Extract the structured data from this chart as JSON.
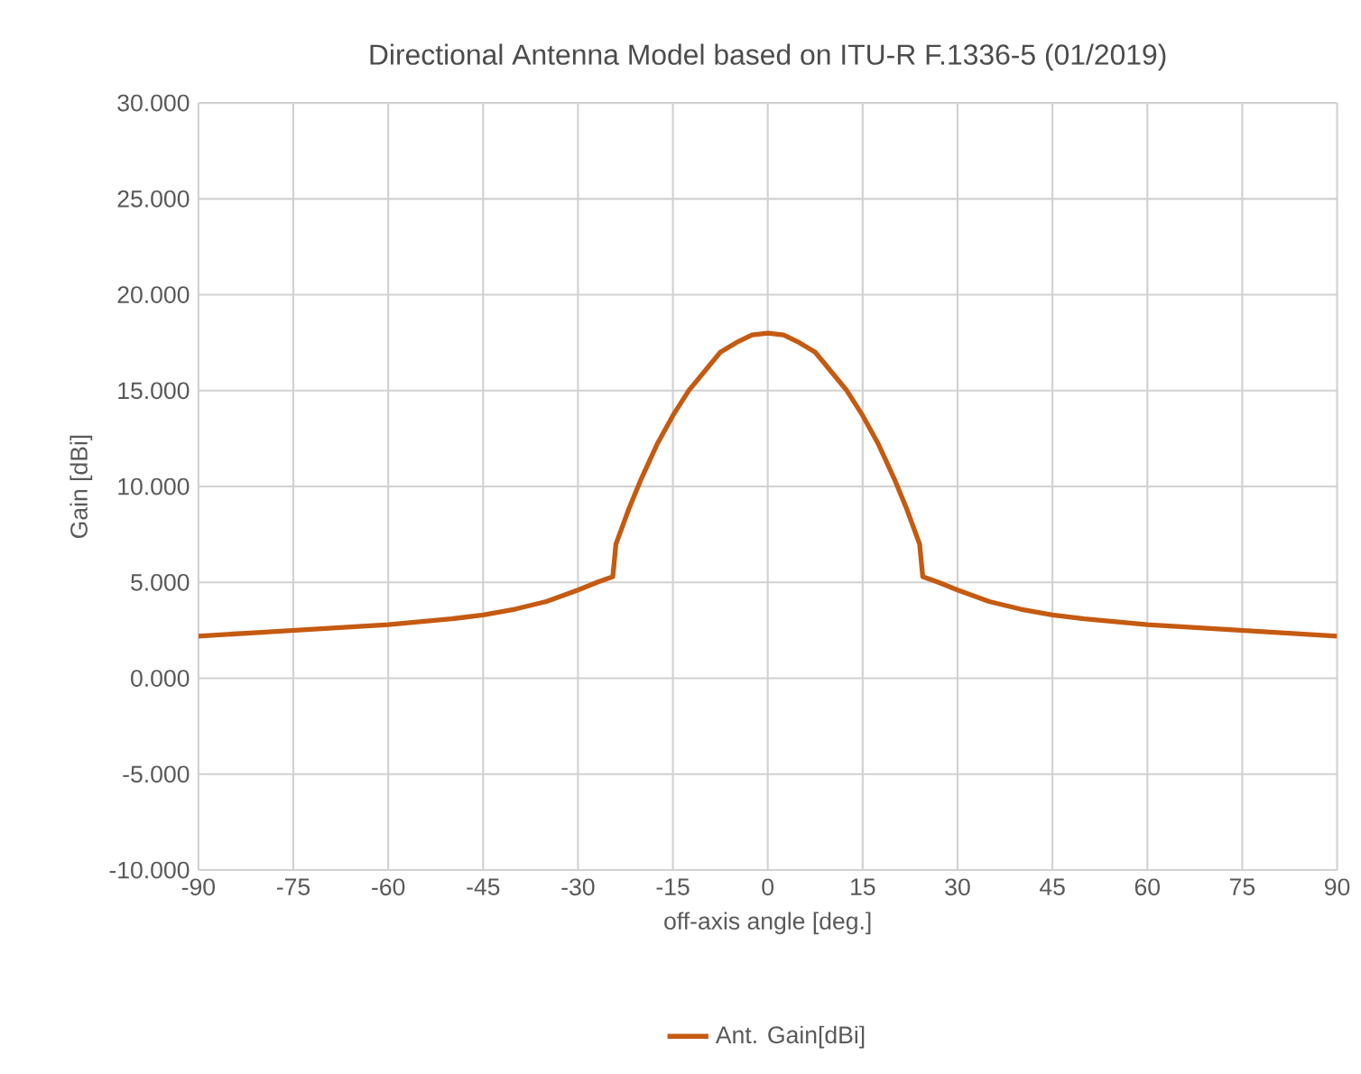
{
  "chart_data": {
    "type": "line",
    "title": "Directional Antenna Model based on ITU-R F.1336-5 (01/2019)",
    "xlabel": "off-axis angle [deg.]",
    "ylabel": "Gain [dBi]",
    "xlim": [
      -90,
      90
    ],
    "xticks": [
      -90,
      -75,
      -60,
      -45,
      -30,
      -15,
      0,
      15,
      30,
      45,
      60,
      75,
      90
    ],
    "ylim": [
      -10,
      30
    ],
    "yticks": [
      {
        "value": -10,
        "label": "-10.000"
      },
      {
        "value": -5,
        "label": "-5.000"
      },
      {
        "value": 0,
        "label": "0.000"
      },
      {
        "value": 5,
        "label": "5.000"
      },
      {
        "value": 10,
        "label": "10.000"
      },
      {
        "value": 15,
        "label": "15.000"
      },
      {
        "value": 20,
        "label": "20.000"
      },
      {
        "value": 25,
        "label": "25.000"
      },
      {
        "value": 30,
        "label": "30.000"
      }
    ],
    "grid": true,
    "legend": "bottom",
    "marker": "none",
    "line_style": "solid",
    "series": [
      {
        "name": "Ant. Gain[dBi]",
        "color": "#c55a11",
        "x": [
          -90,
          -80,
          -70,
          -60,
          -50,
          -45,
          -40,
          -35,
          -30,
          -27,
          -24.5,
          -24,
          -22,
          -20,
          -17.5,
          -15,
          -12.5,
          -10,
          -7.5,
          -5,
          -2.5,
          0,
          2.5,
          5,
          7.5,
          10,
          12.5,
          15,
          17.5,
          20,
          22,
          24,
          24.5,
          27,
          30,
          35,
          40,
          45,
          50,
          60,
          70,
          80,
          90
        ],
        "values": [
          2.2,
          2.4,
          2.6,
          2.8,
          3.1,
          3.3,
          3.6,
          4.0,
          4.6,
          5.0,
          5.3,
          7.0,
          8.8,
          10.4,
          12.2,
          13.7,
          15.0,
          16.0,
          17.0,
          17.5,
          17.9,
          18.0,
          17.9,
          17.5,
          17.0,
          16.0,
          15.0,
          13.7,
          12.2,
          10.4,
          8.8,
          7.0,
          5.3,
          5.0,
          4.6,
          4.0,
          3.6,
          3.3,
          3.1,
          2.8,
          2.6,
          2.4,
          2.2
        ]
      }
    ]
  }
}
